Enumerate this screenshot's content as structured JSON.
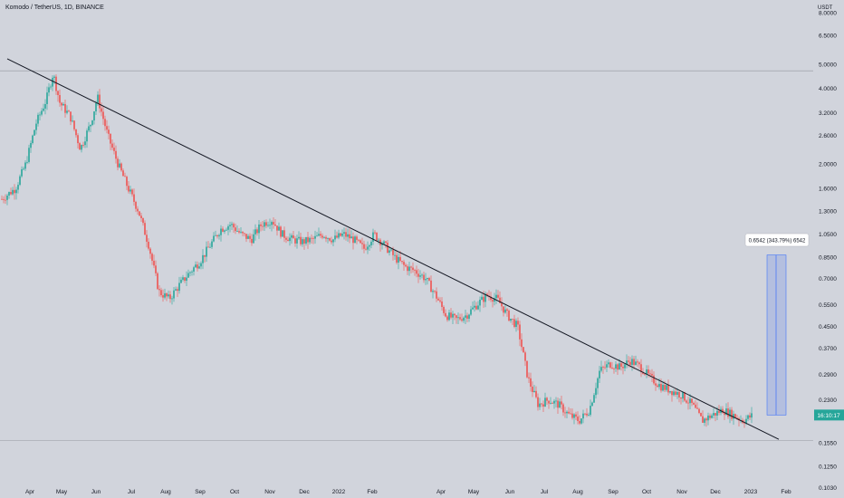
{
  "header": {
    "title": "Komodo / TetherUS, 1D, BINANCE",
    "currency": "USDT"
  },
  "colors": {
    "background": "#d1d4dc",
    "up": "#26a69a",
    "down": "#ef5350",
    "trendline": "#131722",
    "measure_fill": "#aab8e0",
    "measure_stroke": "#2962ff",
    "price_tag": "#26a69a"
  },
  "chart_data": {
    "type": "candlestick",
    "title": "Komodo / TetherUS, 1D, BINANCE",
    "y_scale": "log",
    "y_unit": "USDT",
    "ylim": [
      0.095,
      9.0
    ],
    "x_tick_labels": [
      "Apr",
      "May",
      "Jun",
      "Jul",
      "Aug",
      "Sep",
      "Oct",
      "Nov",
      "Dec",
      "2022",
      "Feb",
      "Apr",
      "May",
      "Jun",
      "Jul",
      "Aug",
      "Sep",
      "Oct",
      "Nov",
      "Dec",
      "2023",
      "Feb"
    ],
    "y_tick_labels": [
      "8.0000",
      "6.5000",
      "5.0000",
      "4.0000",
      "3.2000",
      "2.6000",
      "2.0000",
      "1.6000",
      "1.3000",
      "1.0500",
      "0.8500",
      "0.7000",
      "0.5500",
      "0.4500",
      "0.3700",
      "0.2900",
      "0.2300",
      "0.1550",
      "0.1250",
      "0.1030"
    ],
    "y_tick_values": [
      8.0,
      6.5,
      5.0,
      4.0,
      3.2,
      2.6,
      2.0,
      1.6,
      1.3,
      1.05,
      0.85,
      0.7,
      0.55,
      0.45,
      0.37,
      0.29,
      0.23,
      0.155,
      0.125,
      0.103
    ],
    "price_path": [
      [
        0.0,
        1.45
      ],
      [
        0.02,
        1.6
      ],
      [
        0.035,
        2.0
      ],
      [
        0.05,
        2.9
      ],
      [
        0.065,
        3.6
      ],
      [
        0.075,
        4.6
      ],
      [
        0.085,
        3.5
      ],
      [
        0.1,
        3.1
      ],
      [
        0.115,
        2.3
      ],
      [
        0.13,
        2.9
      ],
      [
        0.14,
        3.7
      ],
      [
        0.155,
        2.6
      ],
      [
        0.17,
        2.0
      ],
      [
        0.185,
        1.6
      ],
      [
        0.2,
        1.3
      ],
      [
        0.215,
        0.95
      ],
      [
        0.23,
        0.62
      ],
      [
        0.245,
        0.58
      ],
      [
        0.26,
        0.66
      ],
      [
        0.275,
        0.74
      ],
      [
        0.29,
        0.82
      ],
      [
        0.305,
        0.95
      ],
      [
        0.32,
        1.1
      ],
      [
        0.335,
        1.15
      ],
      [
        0.35,
        1.05
      ],
      [
        0.365,
        1.0
      ],
      [
        0.38,
        1.15
      ],
      [
        0.395,
        1.2
      ],
      [
        0.41,
        1.05
      ],
      [
        0.425,
        1.0
      ],
      [
        0.44,
        0.98
      ],
      [
        0.455,
        1.0
      ],
      [
        0.47,
        1.05
      ],
      [
        0.485,
        1.0
      ],
      [
        0.5,
        1.05
      ],
      [
        0.515,
        1.0
      ],
      [
        0.53,
        0.92
      ],
      [
        0.545,
        1.05
      ],
      [
        0.56,
        0.95
      ],
      [
        0.575,
        0.85
      ],
      [
        0.59,
        0.78
      ],
      [
        0.605,
        0.75
      ],
      [
        0.62,
        0.7
      ],
      [
        0.635,
        0.6
      ],
      [
        0.65,
        0.5
      ],
      [
        0.665,
        0.48
      ],
      [
        0.68,
        0.5
      ],
      [
        0.695,
        0.55
      ],
      [
        0.71,
        0.6
      ],
      [
        0.725,
        0.58
      ],
      [
        0.74,
        0.5
      ],
      [
        0.755,
        0.45
      ],
      [
        0.77,
        0.28
      ],
      [
        0.785,
        0.22
      ],
      [
        0.8,
        0.23
      ],
      [
        0.815,
        0.22
      ],
      [
        0.83,
        0.2
      ],
      [
        0.845,
        0.19
      ],
      [
        0.86,
        0.21
      ],
      [
        0.875,
        0.3
      ],
      [
        0.89,
        0.32
      ],
      [
        0.905,
        0.31
      ],
      [
        0.92,
        0.33
      ],
      [
        0.935,
        0.31
      ],
      [
        0.95,
        0.28
      ],
      [
        0.965,
        0.26
      ],
      [
        0.98,
        0.25
      ],
      [
        0.995,
        0.24
      ],
      [
        1.01,
        0.22
      ],
      [
        1.025,
        0.19
      ],
      [
        1.04,
        0.2
      ],
      [
        1.055,
        0.21
      ],
      [
        1.07,
        0.2
      ],
      [
        1.085,
        0.19
      ],
      [
        1.1,
        0.2
      ]
    ],
    "last_price": "16:10:17",
    "measure_label": "0.6542 (343.79%) 6542"
  }
}
